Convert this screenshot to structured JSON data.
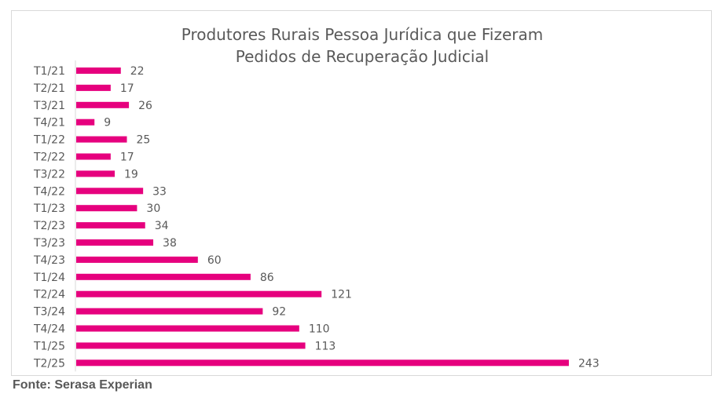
{
  "chart_data": {
    "type": "bar",
    "orientation": "horizontal",
    "title_lines": [
      "Produtores Rurais Pessoa Jurídica que Fizeram",
      "Pedidos de Recuperação Judicial"
    ],
    "categories": [
      "T1/21",
      "T2/21",
      "T3/21",
      "T4/21",
      "T1/22",
      "T2/22",
      "T3/22",
      "T4/22",
      "T1/23",
      "T2/23",
      "T3/23",
      "T4/23",
      "T1/24",
      "T2/24",
      "T3/24",
      "T4/24",
      "T1/25",
      "T2/25"
    ],
    "values": [
      22,
      17,
      26,
      9,
      25,
      17,
      19,
      33,
      30,
      34,
      38,
      60,
      86,
      121,
      92,
      110,
      113,
      243
    ],
    "xlim": [
      0,
      243
    ],
    "bar_color": "#e6007e",
    "data_labels": true,
    "grid": false,
    "legend": "none"
  },
  "source": "Fonte: Serasa Experian",
  "colors": {
    "text": "#595959",
    "axis": "#d9d9d9",
    "frame_border": "#d9d9d9"
  }
}
